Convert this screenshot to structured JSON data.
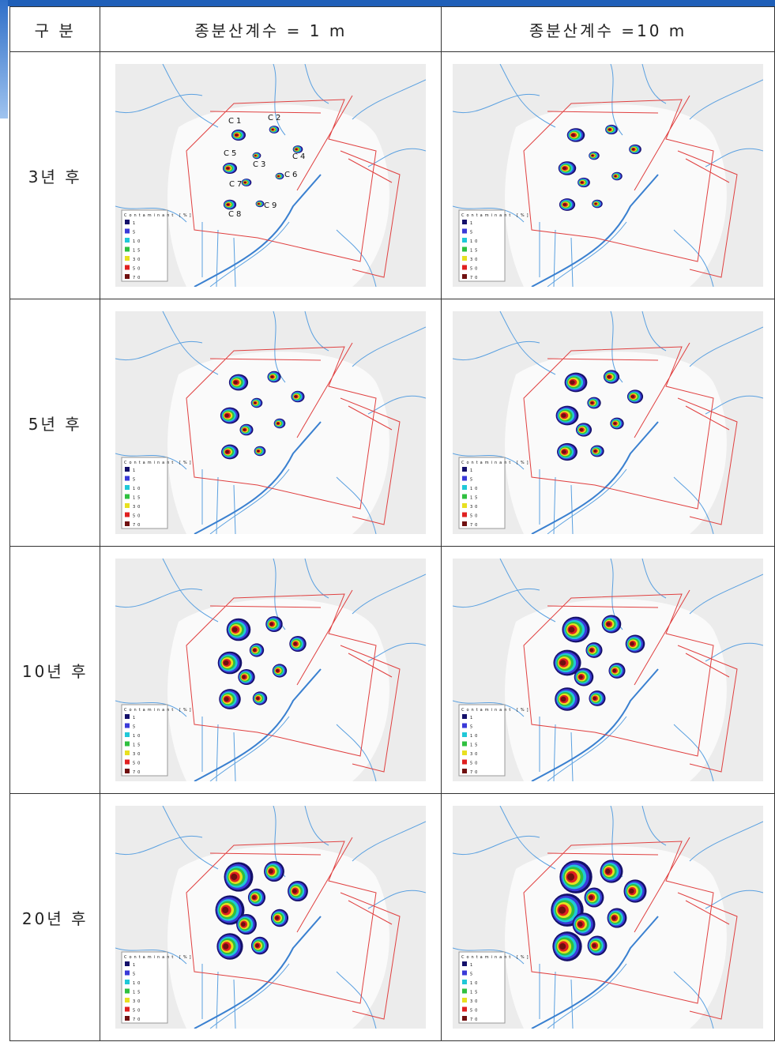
{
  "table": {
    "header": [
      "구 분",
      "종분산계수 = 1 m",
      "종분산계수 =10 m"
    ],
    "rows": [
      {
        "label": "3년 후"
      },
      {
        "label": "5년 후"
      },
      {
        "label": "10년 후"
      },
      {
        "label": "20년 후"
      }
    ]
  },
  "map_labels": [
    "C1",
    "C2",
    "C3",
    "C4",
    "C5",
    "C6",
    "C7",
    "C8",
    "C9"
  ],
  "legend": {
    "title": "Contaminant [%]",
    "levels": [
      "1",
      "5",
      "10",
      "15",
      "30",
      "50",
      "70"
    ]
  }
}
